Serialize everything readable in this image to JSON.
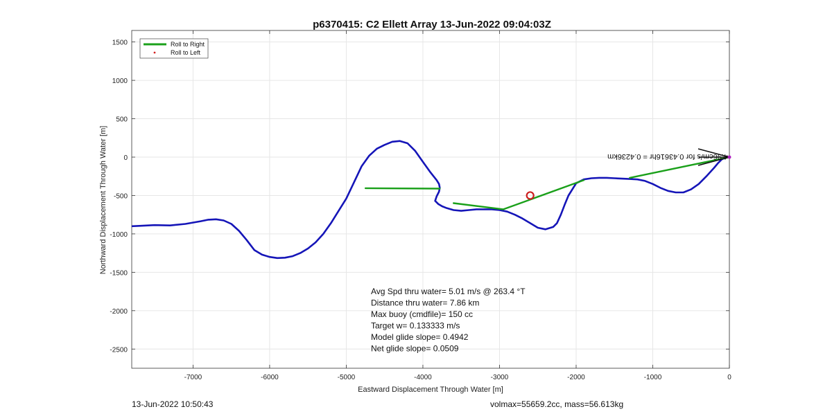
{
  "chart_data": {
    "type": "line",
    "title": "p6370415: C2 Ellett Array 13-Jun-2022 09:04:03Z",
    "xlabel": "Eastward Displacement Through Water [m]",
    "ylabel": "Northward Displacement Through Water [m]",
    "xlim": [
      -7800,
      0
    ],
    "ylim": [
      -2750,
      1650
    ],
    "xticks": [
      -7000,
      -6000,
      -5000,
      -4000,
      -3000,
      -2000,
      -1000,
      0
    ],
    "yticks": [
      1500,
      1000,
      500,
      0,
      -500,
      -1000,
      -1500,
      -2000,
      -2500
    ],
    "grid": true,
    "legend_position": "top-left",
    "legend": [
      {
        "label": "Roll to Right",
        "color": "#1aa01a",
        "style": "line"
      },
      {
        "label": "Roll to Left",
        "color": "#d42020",
        "style": "dot"
      }
    ],
    "series": [
      {
        "color": "#1515b8",
        "x": [
          -7800,
          -7700,
          -7500,
          -7300,
          -7100,
          -6900,
          -6800,
          -6700,
          -6600,
          -6500,
          -6400,
          -6300,
          -6200,
          -6100,
          -6000,
          -5900,
          -5800,
          -5700,
          -5600,
          -5500,
          -5400,
          -5300,
          -5200,
          -5100,
          -5000,
          -4900,
          -4800,
          -4700,
          -4600,
          -4500,
          -4400,
          -4300,
          -4200,
          -4100,
          -4000,
          -3900,
          -3820,
          -3790,
          -3780,
          -3790,
          -3820,
          -3840,
          -3800,
          -3750,
          -3700,
          -3600,
          -3500,
          -3400,
          -3300,
          -3200,
          -3100,
          -3000,
          -2900,
          -2800,
          -2700,
          -2600,
          -2500,
          -2400,
          -2300,
          -2250,
          -2200,
          -2150,
          -2100,
          -2000,
          -1900,
          -1800,
          -1700,
          -1600,
          -1500,
          -1400,
          -1300,
          -1200,
          -1100,
          -1000,
          -900,
          -800,
          -700,
          -600,
          -500,
          -400,
          -300,
          -200,
          -150,
          -100,
          -50,
          0
        ],
        "y": [
          -900,
          -895,
          -885,
          -890,
          -870,
          -835,
          -815,
          -810,
          -825,
          -870,
          -960,
          -1080,
          -1210,
          -1270,
          -1300,
          -1315,
          -1310,
          -1290,
          -1250,
          -1190,
          -1110,
          -1000,
          -860,
          -700,
          -540,
          -330,
          -120,
          20,
          110,
          160,
          200,
          210,
          180,
          80,
          -60,
          -200,
          -300,
          -350,
          -400,
          -450,
          -510,
          -570,
          -610,
          -640,
          -660,
          -690,
          -700,
          -690,
          -680,
          -680,
          -680,
          -690,
          -710,
          -750,
          -800,
          -860,
          -920,
          -940,
          -910,
          -860,
          -750,
          -620,
          -500,
          -340,
          -290,
          -275,
          -270,
          -270,
          -275,
          -280,
          -285,
          -290,
          -310,
          -350,
          -400,
          -440,
          -460,
          -460,
          -420,
          -350,
          -250,
          -140,
          -80,
          -30,
          -5,
          0
        ]
      },
      {
        "color": "#1aa01a",
        "x": [
          -4750,
          -3780
        ],
        "y": [
          -405,
          -410
        ]
      },
      {
        "color": "#1aa01a",
        "x": [
          -3600,
          -2950,
          -1900
        ],
        "y": [
          -600,
          -680,
          -300
        ]
      },
      {
        "color": "#1aa01a",
        "x": [
          -1300,
          0
        ],
        "y": [
          -270,
          0
        ]
      }
    ],
    "markers": [
      {
        "name": "target-circle",
        "x": -2600,
        "y": -500,
        "color": "#cc1f1f"
      }
    ],
    "vector": {
      "from_x": 0,
      "from_y": 0,
      "to_x": -400,
      "to_y": 0,
      "label": "4.96cm/s for 0.43616hr = 0.4236km"
    },
    "annotations": [
      "Avg Spd thru water=  5.01 m/s @ 263.4 °T",
      "Distance thru water=  7.86 km",
      "Max buoy (cmdfile)= 150 cc",
      "Target w= 0.133333 m/s",
      "Model glide slope= 0.4942",
      "Net glide slope= 0.0509"
    ]
  },
  "footer": {
    "timestamp": "13-Jun-2022 10:50:43",
    "summary": "volmax=55659.2cc, mass=56.613kg"
  }
}
